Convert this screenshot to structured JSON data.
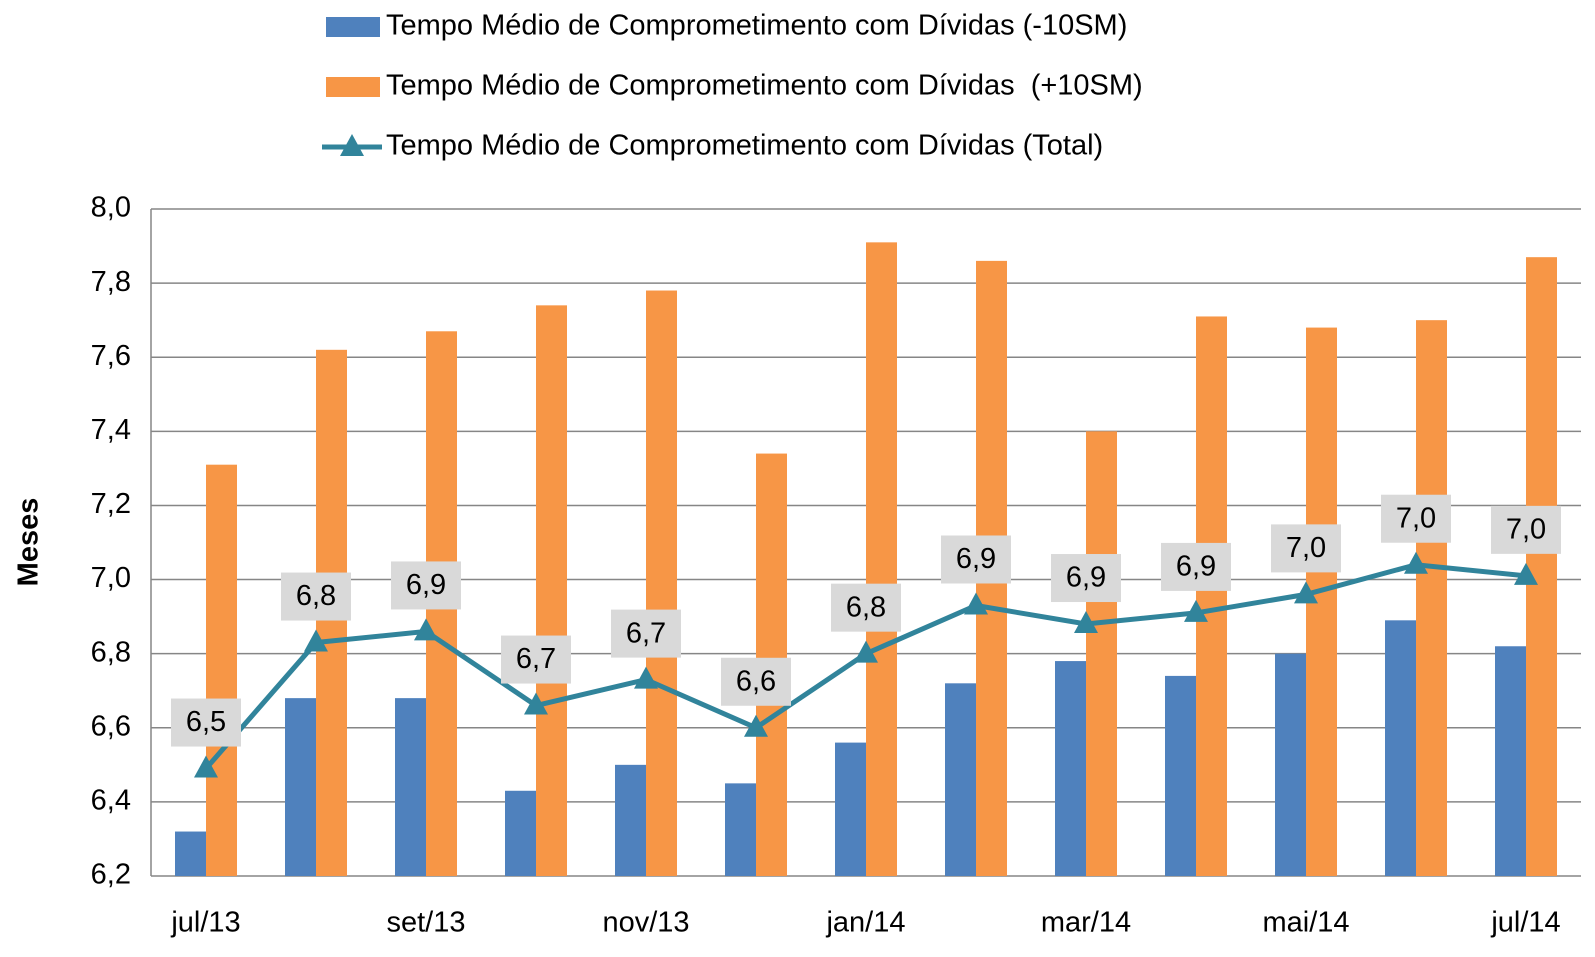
{
  "chart_data": {
    "type": "bar",
    "y_label": "Meses",
    "categories": [
      "jul/13",
      null,
      "set/13",
      null,
      "nov/13",
      null,
      "jan/14",
      null,
      "mar/14",
      null,
      "mai/14",
      null,
      "jul/14"
    ],
    "series": [
      {
        "name": "Tempo Médio de Comprometimento com Dívidas (-10SM)",
        "type": "bar",
        "color": "#4f81bd",
        "values": [
          6.32,
          6.68,
          6.68,
          6.43,
          6.5,
          6.45,
          6.56,
          6.72,
          6.78,
          6.74,
          6.8,
          6.89,
          6.82
        ]
      },
      {
        "name": "Tempo Médio de Comprometimento com Dívidas  (+10SM)",
        "type": "bar",
        "color": "#f79646",
        "values": [
          7.31,
          7.62,
          7.67,
          7.74,
          7.78,
          7.34,
          7.91,
          7.86,
          7.4,
          7.71,
          7.68,
          7.7,
          7.87
        ]
      },
      {
        "name": "Tempo Médio de Comprometimento com Dívidas (Total)",
        "type": "line",
        "color": "#31849b",
        "values": [
          6.49,
          6.83,
          6.86,
          6.66,
          6.73,
          6.6,
          6.8,
          6.93,
          6.88,
          6.91,
          6.96,
          7.04,
          7.01
        ],
        "value_labels": [
          "6,5",
          "6,8",
          "6,9",
          "6,7",
          "6,7",
          "6,6",
          "6,8",
          "6,9",
          "6,9",
          "6,9",
          "7,0",
          "7,0",
          "7,0"
        ]
      }
    ],
    "ylim": [
      6.2,
      8.0
    ],
    "yticks": [
      {
        "value": 6.2,
        "label": "6,2"
      },
      {
        "value": 6.4,
        "label": "6,4"
      },
      {
        "value": 6.6,
        "label": "6,6"
      },
      {
        "value": 6.8,
        "label": "6,8"
      },
      {
        "value": 7.0,
        "label": "7,0"
      },
      {
        "value": 7.2,
        "label": "7,2"
      },
      {
        "value": 7.4,
        "label": "7,4"
      },
      {
        "value": 7.6,
        "label": "7,6"
      },
      {
        "value": 7.8,
        "label": "7,8"
      },
      {
        "value": 8.0,
        "label": "8,0"
      }
    ],
    "grid": true
  }
}
